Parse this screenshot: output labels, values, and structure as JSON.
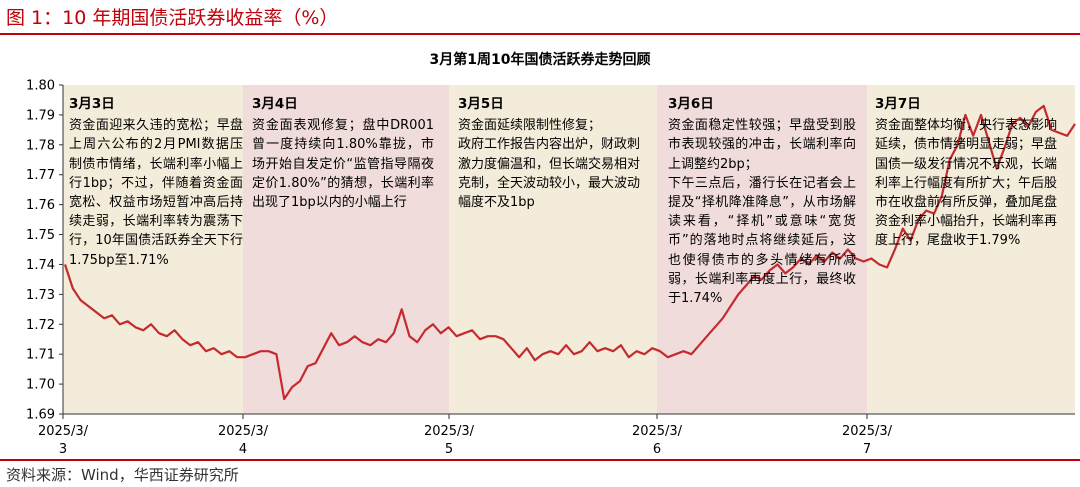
{
  "figure_title": "图 1：10 年期国债活跃券收益率（%）",
  "source": "资料来源：Wind，华西证券研究所",
  "colors": {
    "brand_red": "#c0000a",
    "line": "#c42a2e",
    "shade_odd": "#f4ecda",
    "shade_even": "#f1dcdc"
  },
  "chart_data": {
    "type": "line",
    "title": "3月第1周10年国债活跃券走势回顾",
    "xlabel": "",
    "ylabel": "",
    "ylim": [
      1.69,
      1.8
    ],
    "yticks": [
      "1.69",
      "1.70",
      "1.71",
      "1.72",
      "1.73",
      "1.74",
      "1.75",
      "1.76",
      "1.77",
      "1.78",
      "1.79",
      "1.80"
    ],
    "xticks": [
      {
        "l1": "2025/3/",
        "l2": "3"
      },
      {
        "l1": "2025/3/",
        "l2": "4"
      },
      {
        "l1": "2025/3/",
        "l2": "5"
      },
      {
        "l1": "2025/3/",
        "l2": "6"
      },
      {
        "l1": "2025/3/",
        "l2": "7"
      }
    ],
    "grid": false,
    "legend": "none",
    "days": [
      "2025/3/3",
      "2025/3/4",
      "2025/3/5",
      "2025/3/6",
      "2025/3/7"
    ],
    "series": [
      {
        "values": [
          1.74,
          1.732,
          1.728,
          1.726,
          1.724,
          1.722,
          1.723,
          1.72,
          1.721,
          1.719,
          1.718,
          1.72,
          1.717,
          1.716,
          1.718,
          1.715,
          1.713,
          1.714,
          1.711,
          1.712,
          1.71,
          1.711,
          1.709,
          1.709,
          1.71,
          1.711,
          1.711,
          1.71,
          1.695,
          1.699,
          1.701,
          1.706,
          1.707,
          1.712,
          1.717,
          1.713,
          1.714,
          1.716,
          1.714,
          1.713,
          1.715,
          1.714,
          1.717,
          1.725,
          1.716,
          1.714,
          1.718,
          1.72,
          1.717,
          1.719,
          1.716,
          1.717,
          1.718,
          1.715,
          1.716,
          1.716,
          1.715,
          1.712,
          1.709,
          1.712,
          1.708,
          1.71,
          1.711,
          1.71,
          1.713,
          1.71,
          1.711,
          1.714,
          1.711,
          1.712,
          1.711,
          1.713,
          1.709,
          1.711,
          1.71,
          1.712,
          1.711,
          1.709,
          1.71,
          1.711,
          1.71,
          1.713,
          1.716,
          1.719,
          1.722,
          1.726,
          1.73,
          1.733,
          1.736,
          1.735,
          1.738,
          1.74,
          1.737,
          1.739,
          1.742,
          1.74,
          1.743,
          1.741,
          1.744,
          1.742,
          1.745,
          1.742,
          1.741,
          1.742,
          1.74,
          1.739,
          1.745,
          1.752,
          1.748,
          1.755,
          1.758,
          1.757,
          1.763,
          1.775,
          1.78,
          1.79,
          1.783,
          1.79,
          1.781,
          1.772,
          1.779,
          1.787,
          1.789,
          1.786,
          1.791,
          1.793,
          1.785,
          1.784,
          1.783,
          1.787
        ]
      }
    ],
    "annotations": [
      {
        "date": "3月3日",
        "lines": [
          "资金面迎来久违的宽松；早盘上周六公布的2月PMI数据压制债市情绪，长端利率小幅上行1bp；不过，伴随着资金面宽松、权益市场短暂冲高后持续走弱，长端利率转为震荡下行，10年国债活跃券全天下行1.75bp至1.71%"
        ]
      },
      {
        "date": "3月4日",
        "lines": [
          "资金面表观修复；盘中DR001曾一度持续向1.80%靠拢，市场开始自发定价“监管指导隔夜定价1.80%”的猜想，长端利率出现了1bp以内的小幅上行"
        ]
      },
      {
        "date": "3月5日",
        "lines": [
          "资金面延续限制性修复；",
          "政府工作报告内容出炉，财政刺激力度偏温和，但长端交易相对克制，全天波动较小，最大波动幅度不及1bp"
        ]
      },
      {
        "date": "3月6日",
        "lines": [
          "资金面稳定性较强；早盘受到股市表现较强的冲击，长端利率向上调整约2bp；",
          "下午三点后，潘行长在记者会上提及“择机降准降息”，从市场解读来看，“择机”或意味“宽货币”的落地时点将继续延后，这也使得债市的多头情绪有所减弱，长端利率再度上行，最终收于1.74%"
        ]
      },
      {
        "date": "3月7日",
        "lines": [
          "资金面整体均衡，央行表态影响延续，债市情绪明显走弱；早盘国债一级发行情况不乐观，长端利率上行幅度有所扩大；午后股市在收盘前有所反弹，叠加尾盘资金利率小幅抬升，长端利率再度上行，尾盘收于1.79%"
        ]
      }
    ]
  }
}
